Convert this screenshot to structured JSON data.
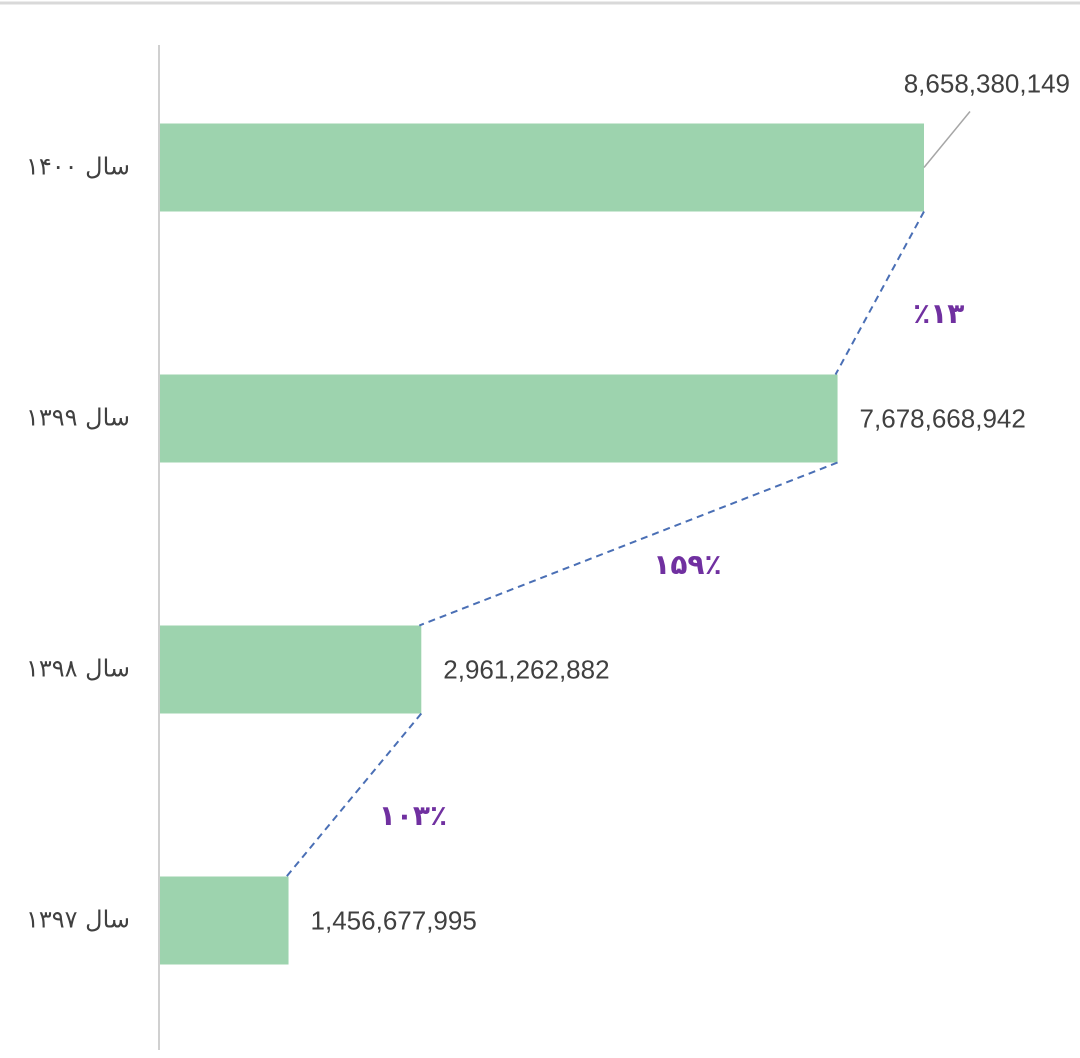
{
  "chart_data": {
    "type": "hbar",
    "categories": [
      "سال ۱۴۰۰",
      "سال ۱۳۹۹",
      "سال ۱۳۹۸",
      "سال ۱۳۹۷"
    ],
    "values": [
      8658380149,
      7678668942,
      2961262882,
      1456677995
    ],
    "value_labels": [
      "8,658,380,149",
      "7,678,668,942",
      "2,961,262,882",
      "1,456,677,995"
    ],
    "color": "#9dd3ae",
    "annotations": [
      "٪۱۳",
      "۱۵۹٪",
      "۱۰۳٪"
    ],
    "annotation_color": "#7030a0",
    "connector_color": "#4a6fb5"
  }
}
